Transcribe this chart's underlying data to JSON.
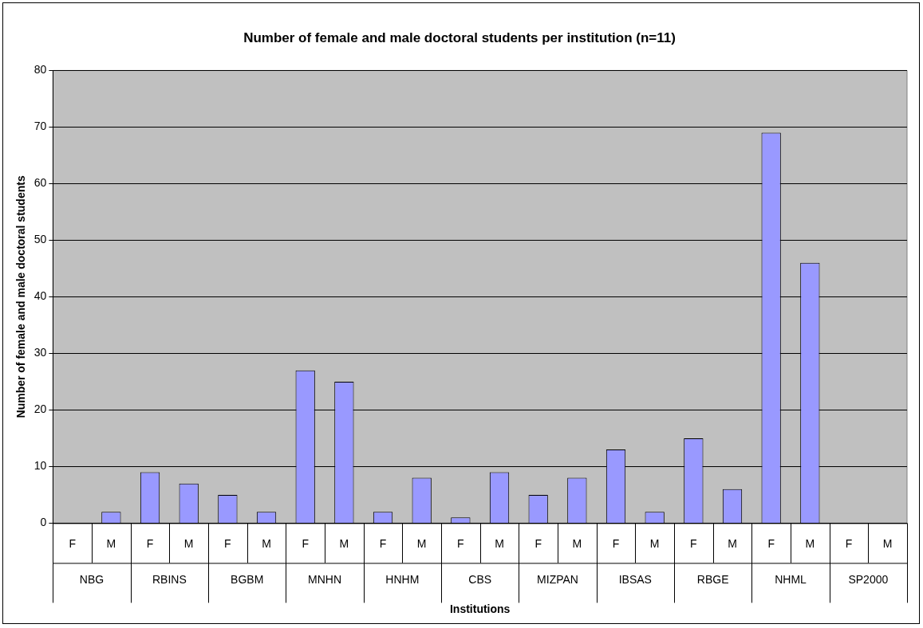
{
  "chart_data": {
    "type": "bar",
    "title": "Number of female and male doctoral students per institution (n=11)",
    "xlabel": "Institutions",
    "ylabel": "Number of female and male doctoral students",
    "categories": [
      "F",
      "M",
      "F",
      "M",
      "F",
      "M",
      "F",
      "M",
      "F",
      "M",
      "F",
      "M",
      "F",
      "M",
      "F",
      "M",
      "F",
      "M",
      "F",
      "M",
      "F",
      "M"
    ],
    "values": [
      0,
      2,
      9,
      7,
      5,
      2,
      27,
      25,
      2,
      8,
      1,
      9,
      5,
      8,
      13,
      2,
      15,
      6,
      69,
      46,
      0,
      0
    ],
    "color": "#9999ff",
    "annotations": [
      "NBG",
      "RBINS",
      "BGBM",
      "MNHN",
      "HNHM",
      "CBS",
      "MIZPAN",
      "IBSAS",
      "RBGE",
      "NHML",
      "SP2000"
    ],
    "ylim": [
      0,
      80
    ],
    "yticks": [
      0,
      10,
      20,
      30,
      40,
      50,
      60,
      70,
      80
    ],
    "grid": "y",
    "legend": false
  }
}
